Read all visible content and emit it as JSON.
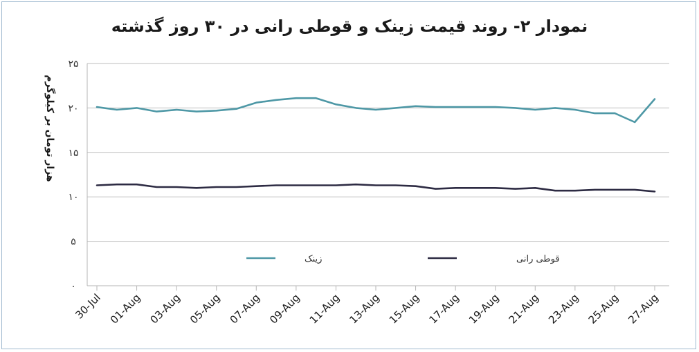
{
  "chart_data": {
    "type": "line",
    "title": "نمودار ۲- روند قیمت زینک و قوطی رانی در ۳۰ روز گذشته",
    "ylabel": "هزار تومان بر کیلوگرم",
    "xlabel": "",
    "ylim": [
      0,
      25
    ],
    "yticks": [
      0,
      5,
      10,
      15,
      20,
      25
    ],
    "ytick_labels": [
      "۰",
      "۵",
      "۱۰",
      "۱۵",
      "۲۰",
      "۲۵"
    ],
    "x_tick_labels": [
      "30-Jul",
      "01-Aug",
      "03-Aug",
      "05-Aug",
      "07-Aug",
      "09-Aug",
      "11-Aug",
      "13-Aug",
      "15-Aug",
      "17-Aug",
      "19-Aug",
      "21-Aug",
      "23-Aug",
      "25-Aug",
      "27-Aug"
    ],
    "grid": true,
    "legend_position": "bottom-inside",
    "series": [
      {
        "name": "زینک",
        "color": "#4e98a6",
        "values": [
          20.1,
          19.8,
          20.0,
          19.6,
          19.8,
          19.6,
          19.7,
          19.9,
          20.6,
          20.9,
          21.1,
          21.1,
          20.4,
          20.0,
          19.8,
          20.0,
          20.2,
          20.1,
          20.1,
          20.1,
          20.1,
          20.0,
          19.8,
          20.0,
          19.8,
          19.4,
          19.4,
          18.4,
          21.0
        ]
      },
      {
        "name": "قوطی رانی",
        "color": "#2d2b43",
        "values": [
          11.3,
          11.4,
          11.4,
          11.1,
          11.1,
          11.0,
          11.1,
          11.1,
          11.2,
          11.3,
          11.3,
          11.3,
          11.3,
          11.4,
          11.3,
          11.3,
          11.2,
          10.9,
          11.0,
          11.0,
          11.0,
          10.9,
          11.0,
          10.7,
          10.7,
          10.8,
          10.8,
          10.8,
          10.6
        ]
      }
    ]
  }
}
